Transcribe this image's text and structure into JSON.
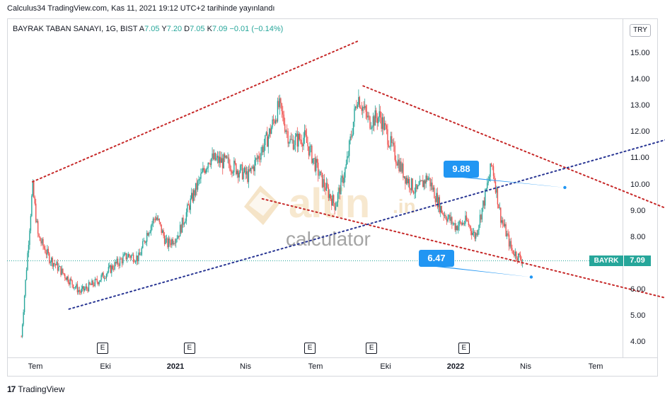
{
  "caption": "Calculus34 TradingView.com, Kas 11, 2021 19:12 UTC+2 tarihinde yayınlandı",
  "legend": {
    "symbol": "BAYRAK TABAN SANAYI, 1G, BIST",
    "open_label": "A",
    "open": "7.05",
    "high_label": "Y",
    "high": "7.20",
    "low_label": "D",
    "low": "7.05",
    "close_label": "K",
    "close": "7.09",
    "change": "−0.01 (−0.14%)"
  },
  "currency": "TRY",
  "price_tag": {
    "ticker": "BAYRK",
    "value": "7.09"
  },
  "callouts": {
    "upper": "9.88",
    "lower": "6.47"
  },
  "earnings_marker": "E",
  "watermark": {
    "brand": "altin",
    "suffix": ".in",
    "sub": "calculator"
  },
  "footer": {
    "logo": "17",
    "name": "TradingView"
  },
  "colors": {
    "up": "#26a69a",
    "down": "#ef5350",
    "channel": "#c62828",
    "trend": "#283593",
    "callout": "#2196f3"
  },
  "chart_data": {
    "type": "candlestick",
    "title": "",
    "y_axis": {
      "ticks": [
        4.0,
        5.0,
        6.0,
        7.0,
        8.0,
        9.0,
        10.0,
        11.0,
        12.0,
        13.0,
        14.0,
        15.0
      ],
      "tick_labels": [
        "4.00",
        "5.00",
        "6.00",
        "7.00",
        "8.00",
        "9.00",
        "10.00",
        "11.00",
        "12.00",
        "13.00",
        "14.00",
        "15.00"
      ],
      "range": [
        3.3,
        15.8
      ]
    },
    "x_axis": {
      "labels": [
        "Tem",
        "Eki",
        "2021",
        "Nis",
        "Tem",
        "Eki",
        "2022",
        "Nis",
        "Tem"
      ],
      "bold": [
        "2021",
        "2022"
      ]
    },
    "current_price": 7.09,
    "close_path": [
      [
        2020.45,
        4.2
      ],
      [
        2020.49,
        9.9
      ],
      [
        2020.51,
        8.0
      ],
      [
        2020.55,
        7.2
      ],
      [
        2020.6,
        6.6
      ],
      [
        2020.66,
        5.9
      ],
      [
        2020.72,
        6.3
      ],
      [
        2020.78,
        6.9
      ],
      [
        2020.83,
        7.3
      ],
      [
        2020.87,
        7.2
      ],
      [
        2020.9,
        8.2
      ],
      [
        2020.93,
        8.8
      ],
      [
        2020.97,
        7.7
      ],
      [
        2021.01,
        8.1
      ],
      [
        2021.06,
        9.5
      ],
      [
        2021.12,
        11.0
      ],
      [
        2021.19,
        10.8
      ],
      [
        2021.26,
        10.3
      ],
      [
        2021.33,
        11.8
      ],
      [
        2021.37,
        13.0
      ],
      [
        2021.41,
        11.6
      ],
      [
        2021.46,
        11.8
      ],
      [
        2021.52,
        10.2
      ],
      [
        2021.57,
        9.2
      ],
      [
        2021.61,
        10.7
      ],
      [
        2021.65,
        13.4
      ],
      [
        2021.69,
        12.4
      ],
      [
        2021.73,
        12.6
      ],
      [
        2021.78,
        11.2
      ],
      [
        2021.82,
        10.3
      ],
      [
        2021.86,
        9.7
      ],
      [
        2021.9,
        10.3
      ],
      [
        2021.95,
        9.0
      ],
      [
        2022.0,
        8.4
      ],
      [
        2022.04,
        8.6
      ],
      [
        2022.07,
        8.0
      ],
      [
        2022.1,
        9.3
      ],
      [
        2022.13,
        10.8
      ],
      [
        2022.16,
        8.8
      ],
      [
        2022.2,
        7.5
      ],
      [
        2022.24,
        7.09
      ]
    ],
    "lines": [
      {
        "name": "",
        "style": "dotted",
        "color": "#c62828",
        "from": [
          2020.49,
          10.1
        ],
        "to": [
          2021.65,
          15.45
        ]
      },
      {
        "name": "",
        "style": "dotted",
        "color": "#c62828",
        "from": [
          2021.31,
          9.45
        ],
        "to": [
          2023.56,
          3.55
        ]
      },
      {
        "name": "",
        "style": "dotted",
        "color": "#c62828",
        "from": [
          2021.67,
          13.75
        ],
        "to": [
          2023.56,
          5.6
        ]
      },
      {
        "name": "",
        "style": "dotted",
        "color": "#283593",
        "from": [
          2020.62,
          5.25
        ],
        "to": [
          2023.56,
          14.15
        ]
      }
    ],
    "annotations": [
      {
        "text": "9.88",
        "point": [
          2022.39,
          9.88
        ]
      },
      {
        "text": "6.47",
        "point": [
          2022.27,
          6.47
        ]
      }
    ],
    "earnings_dates": [
      2020.74,
      2021.05,
      2021.48,
      2021.7,
      2022.03
    ]
  }
}
